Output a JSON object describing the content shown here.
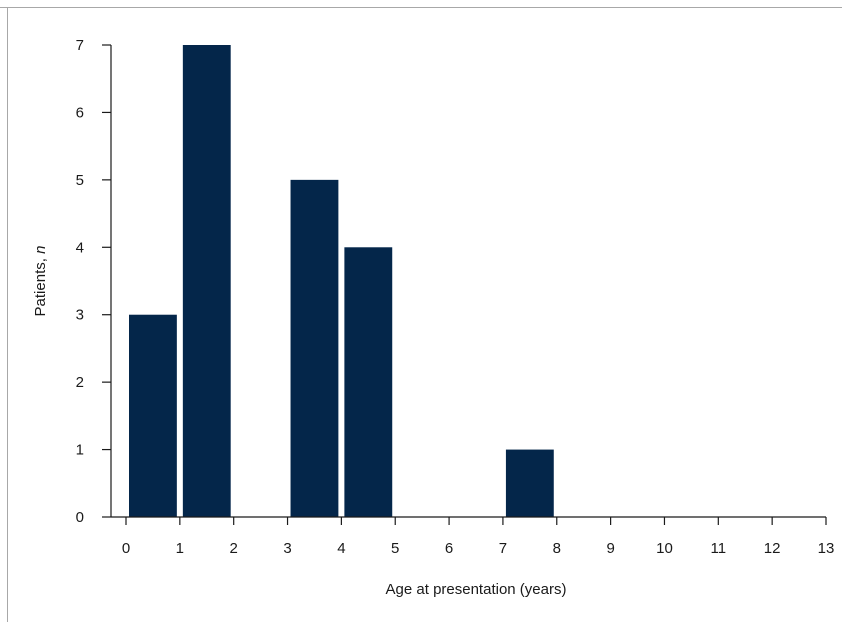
{
  "chart_data": {
    "type": "bar",
    "xlabel": "Age at presentation (years)",
    "ylabel": {
      "main": "Patients, ",
      "italic": "n"
    },
    "bars": [
      {
        "x0": 0,
        "x1": 1,
        "value": 3
      },
      {
        "x0": 1,
        "x1": 2,
        "value": 7
      },
      {
        "x0": 3,
        "x1": 4,
        "value": 5
      },
      {
        "x0": 4,
        "x1": 5,
        "value": 4
      },
      {
        "x0": 7,
        "x1": 8,
        "value": 1
      }
    ],
    "xlim": [
      0,
      13
    ],
    "ylim": [
      0,
      7
    ],
    "xticks": [
      "0",
      "1",
      "2",
      "3",
      "4",
      "5",
      "6",
      "7",
      "8",
      "9",
      "10",
      "11",
      "12",
      "13"
    ],
    "yticks": [
      "0",
      "1",
      "2",
      "3",
      "4",
      "5",
      "6",
      "7"
    ],
    "bar_color": "#04264a",
    "axis_color": "#1a1a1a",
    "grid": false,
    "legend": false
  }
}
